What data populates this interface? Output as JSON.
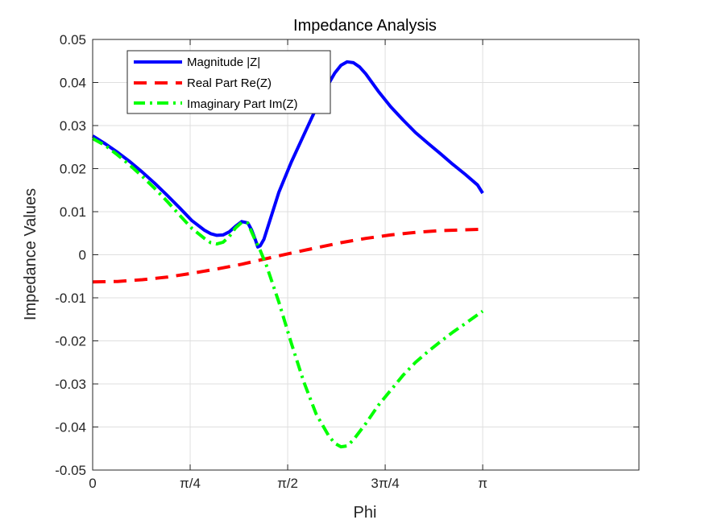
{
  "chart_data": {
    "type": "line",
    "title": "Impedance Analysis",
    "xlabel": "Phi",
    "ylabel": "Impedance Values",
    "xlim": [
      0,
      4.4
    ],
    "ylim": [
      -0.05,
      0.05
    ],
    "x_ticks": [
      {
        "value": 0,
        "label": "0"
      },
      {
        "value": 0.7854,
        "label": "π/4"
      },
      {
        "value": 1.5708,
        "label": "π/2"
      },
      {
        "value": 2.3562,
        "label": "3π/4"
      },
      {
        "value": 3.1416,
        "label": "π"
      }
    ],
    "y_ticks": [
      {
        "value": 0.05,
        "label": "0.05"
      },
      {
        "value": 0.04,
        "label": "0.04"
      },
      {
        "value": 0.03,
        "label": "0.03"
      },
      {
        "value": 0.02,
        "label": "0.02"
      },
      {
        "value": 0.01,
        "label": "0.01"
      },
      {
        "value": 0,
        "label": "0"
      },
      {
        "value": -0.01,
        "label": "-0.01"
      },
      {
        "value": -0.02,
        "label": "-0.02"
      },
      {
        "value": -0.03,
        "label": "-0.03"
      },
      {
        "value": -0.04,
        "label": "-0.04"
      },
      {
        "value": -0.05,
        "label": "-0.05"
      }
    ],
    "grid": true,
    "legend_position": "top-left",
    "series": [
      {
        "name": "Magnitude |Z|",
        "color": "#0000ff",
        "style": "solid",
        "points": [
          [
            0,
            0.0276
          ],
          [
            0.1,
            0.0258
          ],
          [
            0.2,
            0.0238
          ],
          [
            0.3,
            0.0216
          ],
          [
            0.4,
            0.0192
          ],
          [
            0.5,
            0.0166
          ],
          [
            0.6,
            0.0138
          ],
          [
            0.7,
            0.0109
          ],
          [
            0.8,
            0.0079
          ],
          [
            0.9,
            0.0057
          ],
          [
            0.95,
            0.0049
          ],
          [
            1.0,
            0.0045
          ],
          [
            1.05,
            0.0046
          ],
          [
            1.1,
            0.0053
          ],
          [
            1.15,
            0.0066
          ],
          [
            1.2,
            0.0077
          ],
          [
            1.25,
            0.0074
          ],
          [
            1.28,
            0.0058
          ],
          [
            1.31,
            0.0035
          ],
          [
            1.33,
            0.0018
          ],
          [
            1.35,
            0.0021
          ],
          [
            1.38,
            0.0036
          ],
          [
            1.5,
            0.0145
          ],
          [
            1.6,
            0.0215
          ],
          [
            1.7,
            0.0278
          ],
          [
            1.8,
            0.034
          ],
          [
            1.9,
            0.0397
          ],
          [
            1.95,
            0.0422
          ],
          [
            2.0,
            0.044
          ],
          [
            2.05,
            0.0448
          ],
          [
            2.1,
            0.0446
          ],
          [
            2.15,
            0.0436
          ],
          [
            2.2,
            0.042
          ],
          [
            2.3,
            0.038
          ],
          [
            2.4,
            0.0344
          ],
          [
            2.5,
            0.0313
          ],
          [
            2.6,
            0.0284
          ],
          [
            2.7,
            0.0259
          ],
          [
            2.8,
            0.0235
          ],
          [
            2.9,
            0.021
          ],
          [
            3.0,
            0.0187
          ],
          [
            3.1,
            0.0162
          ],
          [
            3.1416,
            0.0143
          ]
        ]
      },
      {
        "name": "Real Part Re(Z)",
        "color": "#ff0000",
        "style": "dashed",
        "points": [
          [
            0,
            -0.0063
          ],
          [
            0.2,
            -0.0062
          ],
          [
            0.4,
            -0.0058
          ],
          [
            0.6,
            -0.0052
          ],
          [
            0.8,
            -0.0043
          ],
          [
            1.0,
            -0.0033
          ],
          [
            1.2,
            -0.0022
          ],
          [
            1.4,
            -0.0009
          ],
          [
            1.6,
            0.0004
          ],
          [
            1.8,
            0.0016
          ],
          [
            2.0,
            0.0028
          ],
          [
            2.2,
            0.0038
          ],
          [
            2.4,
            0.0046
          ],
          [
            2.6,
            0.0052
          ],
          [
            2.8,
            0.0056
          ],
          [
            3.0,
            0.0058
          ],
          [
            3.1416,
            0.0059
          ]
        ]
      },
      {
        "name": "Imaginary Part Im(Z)",
        "color": "#00ff00",
        "style": "dashdot",
        "points": [
          [
            0,
            0.027
          ],
          [
            0.1,
            0.0254
          ],
          [
            0.2,
            0.0232
          ],
          [
            0.3,
            0.0208
          ],
          [
            0.4,
            0.0182
          ],
          [
            0.5,
            0.0154
          ],
          [
            0.6,
            0.0124
          ],
          [
            0.7,
            0.0092
          ],
          [
            0.8,
            0.0061
          ],
          [
            0.9,
            0.0038
          ],
          [
            0.95,
            0.0028
          ],
          [
            1.0,
            0.0025
          ],
          [
            1.05,
            0.0029
          ],
          [
            1.1,
            0.0042
          ],
          [
            1.15,
            0.0062
          ],
          [
            1.2,
            0.0075
          ],
          [
            1.25,
            0.0073
          ],
          [
            1.3,
            0.004
          ],
          [
            1.35,
            0.001
          ],
          [
            1.4,
            -0.0025
          ],
          [
            1.5,
            -0.011
          ],
          [
            1.6,
            -0.0205
          ],
          [
            1.7,
            -0.0295
          ],
          [
            1.8,
            -0.037
          ],
          [
            1.9,
            -0.042
          ],
          [
            1.95,
            -0.0438
          ],
          [
            2.0,
            -0.0446
          ],
          [
            2.05,
            -0.0444
          ],
          [
            2.1,
            -0.043
          ],
          [
            2.2,
            -0.0392
          ],
          [
            2.3,
            -0.035
          ],
          [
            2.4,
            -0.0315
          ],
          [
            2.5,
            -0.028
          ],
          [
            2.6,
            -0.025
          ],
          [
            2.7,
            -0.0225
          ],
          [
            2.8,
            -0.0202
          ],
          [
            2.9,
            -0.018
          ],
          [
            3.0,
            -0.016
          ],
          [
            3.1416,
            -0.0131
          ]
        ]
      }
    ]
  }
}
